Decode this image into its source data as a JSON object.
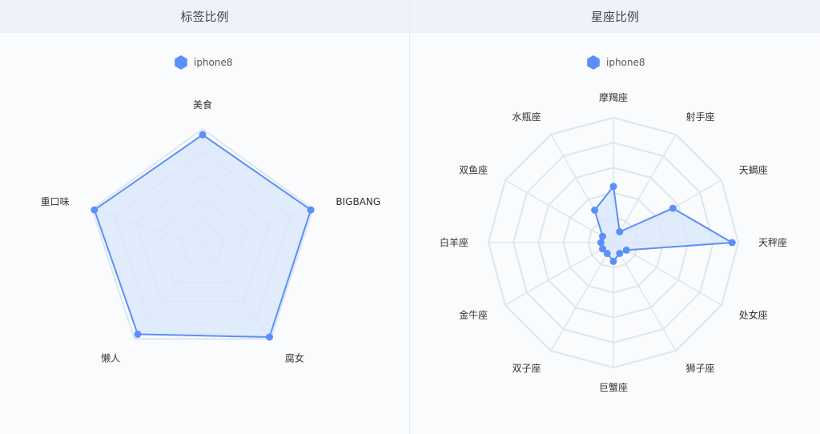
{
  "panels": [
    {
      "title": "标签比例"
    },
    {
      "title": "星座比例"
    }
  ],
  "chart_data": [
    {
      "type": "radar",
      "title": "标签比例",
      "legend": [
        "iphone8"
      ],
      "indicators": [
        "美食",
        "BIGBANG",
        "腐女",
        "懒人",
        "重口味"
      ],
      "series": [
        {
          "name": "iphone8",
          "values": [
            95,
            98,
            98,
            95,
            98
          ]
        }
      ],
      "max": 100,
      "split_number": 5,
      "shape": "polygon",
      "colors": {
        "series": "#5b8ff9",
        "fill": "#dbe7fc",
        "grid": "#dce6ef"
      }
    },
    {
      "type": "radar",
      "title": "星座比例",
      "legend": [
        "iphone8"
      ],
      "indicators": [
        "摩羯座",
        "射手座",
        "天蝎座",
        "天秤座",
        "处女座",
        "狮子座",
        "巨蟹座",
        "双子座",
        "金牛座",
        "白羊座",
        "双鱼座",
        "水瓶座"
      ],
      "series": [
        {
          "name": "iphone8",
          "values": [
            45,
            10,
            55,
            95,
            12,
            10,
            15,
            10,
            10,
            10,
            10,
            30
          ]
        }
      ],
      "max": 100,
      "split_number": 5,
      "shape": "polygon",
      "colors": {
        "series": "#5b8ff9",
        "fill": "#dbe7fc",
        "grid": "#dce6ef"
      }
    }
  ]
}
